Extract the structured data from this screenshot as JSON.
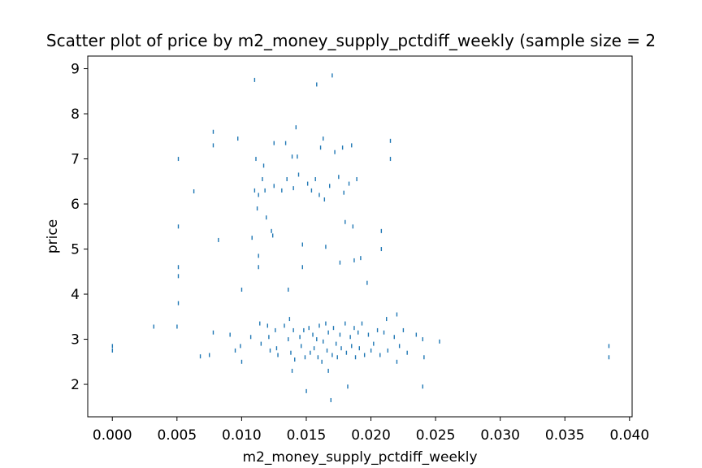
{
  "chart_data": {
    "type": "scatter",
    "title": "Scatter plot of price by m2_money_supply_pctdiff_weekly (sample size = 2",
    "xlabel": "m2_money_supply_pctdiff_weekly",
    "ylabel": "price",
    "xlim": [
      -0.0019,
      0.0402
    ],
    "ylim": [
      1.28,
      9.28
    ],
    "xticks": [
      0.0,
      0.005,
      0.01,
      0.015,
      0.02,
      0.025,
      0.03,
      0.035,
      0.04
    ],
    "xtick_labels": [
      "0.000",
      "0.005",
      "0.010",
      "0.015",
      "0.020",
      "0.025",
      "0.030",
      "0.035",
      "0.040"
    ],
    "yticks": [
      2,
      3,
      4,
      5,
      6,
      7,
      8,
      9
    ],
    "ytick_labels": [
      "2",
      "3",
      "4",
      "5",
      "6",
      "7",
      "8",
      "9"
    ],
    "marker_color": "#1f77b4",
    "points": [
      [
        0.0,
        2.75
      ],
      [
        0.0,
        2.85
      ],
      [
        0.0032,
        3.28
      ],
      [
        0.005,
        3.28
      ],
      [
        0.0051,
        7.0
      ],
      [
        0.0051,
        5.5
      ],
      [
        0.0051,
        4.6
      ],
      [
        0.0051,
        4.4
      ],
      [
        0.0051,
        3.8
      ],
      [
        0.0063,
        6.28
      ],
      [
        0.0068,
        2.62
      ],
      [
        0.0075,
        2.65
      ],
      [
        0.0078,
        3.15
      ],
      [
        0.0078,
        7.6
      ],
      [
        0.0078,
        7.3
      ],
      [
        0.0082,
        5.2
      ],
      [
        0.0091,
        3.1
      ],
      [
        0.0095,
        2.75
      ],
      [
        0.0097,
        7.45
      ],
      [
        0.0099,
        2.85
      ],
      [
        0.01,
        2.5
      ],
      [
        0.01,
        4.1
      ],
      [
        0.0107,
        3.05
      ],
      [
        0.0108,
        5.25
      ],
      [
        0.011,
        8.75
      ],
      [
        0.0111,
        7.0
      ],
      [
        0.011,
        6.3
      ],
      [
        0.0113,
        6.2
      ],
      [
        0.0112,
        5.9
      ],
      [
        0.0113,
        4.85
      ],
      [
        0.0113,
        4.6
      ],
      [
        0.0114,
        3.35
      ],
      [
        0.0115,
        2.9
      ],
      [
        0.0116,
        6.55
      ],
      [
        0.0117,
        6.85
      ],
      [
        0.0118,
        6.3
      ],
      [
        0.0119,
        5.7
      ],
      [
        0.012,
        3.3
      ],
      [
        0.0121,
        3.05
      ],
      [
        0.0122,
        2.75
      ],
      [
        0.0123,
        5.4
      ],
      [
        0.0124,
        5.3
      ],
      [
        0.0125,
        6.4
      ],
      [
        0.0125,
        7.35
      ],
      [
        0.0126,
        3.2
      ],
      [
        0.0127,
        2.8
      ],
      [
        0.0128,
        2.65
      ],
      [
        0.0131,
        6.3
      ],
      [
        0.0133,
        3.3
      ],
      [
        0.0134,
        7.35
      ],
      [
        0.0135,
        6.55
      ],
      [
        0.0136,
        3.0
      ],
      [
        0.0136,
        4.1
      ],
      [
        0.0137,
        3.45
      ],
      [
        0.0138,
        2.7
      ],
      [
        0.0139,
        7.05
      ],
      [
        0.014,
        6.35
      ],
      [
        0.0139,
        2.3
      ],
      [
        0.014,
        3.2
      ],
      [
        0.0141,
        2.55
      ],
      [
        0.0142,
        7.7
      ],
      [
        0.0143,
        7.05
      ],
      [
        0.0144,
        6.65
      ],
      [
        0.0145,
        3.05
      ],
      [
        0.0146,
        2.85
      ],
      [
        0.0147,
        5.1
      ],
      [
        0.0147,
        4.6
      ],
      [
        0.0148,
        3.2
      ],
      [
        0.0149,
        2.6
      ],
      [
        0.015,
        1.85
      ],
      [
        0.0151,
        6.45
      ],
      [
        0.0152,
        3.25
      ],
      [
        0.0153,
        2.7
      ],
      [
        0.0154,
        6.3
      ],
      [
        0.0155,
        3.1
      ],
      [
        0.0156,
        2.8
      ],
      [
        0.0157,
        6.55
      ],
      [
        0.0158,
        8.65
      ],
      [
        0.0158,
        3.0
      ],
      [
        0.0159,
        2.6
      ],
      [
        0.016,
        6.2
      ],
      [
        0.016,
        3.3
      ],
      [
        0.0161,
        7.25
      ],
      [
        0.0162,
        2.5
      ],
      [
        0.0163,
        2.95
      ],
      [
        0.0163,
        7.45
      ],
      [
        0.0164,
        6.1
      ],
      [
        0.0165,
        3.35
      ],
      [
        0.0165,
        5.05
      ],
      [
        0.0166,
        2.75
      ],
      [
        0.0167,
        3.15
      ],
      [
        0.0167,
        2.3
      ],
      [
        0.0168,
        6.4
      ],
      [
        0.0169,
        1.65
      ],
      [
        0.017,
        8.85
      ],
      [
        0.017,
        2.65
      ],
      [
        0.0171,
        3.25
      ],
      [
        0.0172,
        7.15
      ],
      [
        0.0173,
        2.9
      ],
      [
        0.0174,
        2.6
      ],
      [
        0.0175,
        6.6
      ],
      [
        0.0176,
        4.7
      ],
      [
        0.0176,
        3.1
      ],
      [
        0.0177,
        2.8
      ],
      [
        0.0178,
        7.25
      ],
      [
        0.0179,
        6.25
      ],
      [
        0.018,
        5.6
      ],
      [
        0.018,
        3.35
      ],
      [
        0.0181,
        2.7
      ],
      [
        0.0182,
        1.95
      ],
      [
        0.0183,
        6.45
      ],
      [
        0.0184,
        3.05
      ],
      [
        0.0185,
        7.3
      ],
      [
        0.0185,
        2.85
      ],
      [
        0.0186,
        5.5
      ],
      [
        0.0187,
        4.75
      ],
      [
        0.0187,
        3.25
      ],
      [
        0.0188,
        2.6
      ],
      [
        0.0189,
        6.55
      ],
      [
        0.019,
        3.15
      ],
      [
        0.0191,
        2.8
      ],
      [
        0.0192,
        4.8
      ],
      [
        0.0193,
        3.35
      ],
      [
        0.0195,
        2.65
      ],
      [
        0.0197,
        4.25
      ],
      [
        0.0198,
        3.1
      ],
      [
        0.02,
        2.75
      ],
      [
        0.0202,
        2.9
      ],
      [
        0.0205,
        3.2
      ],
      [
        0.0207,
        2.65
      ],
      [
        0.0208,
        5.4
      ],
      [
        0.0208,
        5.0
      ],
      [
        0.021,
        3.15
      ],
      [
        0.0212,
        3.45
      ],
      [
        0.0213,
        2.75
      ],
      [
        0.0215,
        7.4
      ],
      [
        0.0215,
        7.0
      ],
      [
        0.0218,
        3.05
      ],
      [
        0.022,
        2.5
      ],
      [
        0.022,
        3.55
      ],
      [
        0.0222,
        2.85
      ],
      [
        0.0225,
        3.2
      ],
      [
        0.0228,
        2.7
      ],
      [
        0.0235,
        3.1
      ],
      [
        0.024,
        1.95
      ],
      [
        0.024,
        3.0
      ],
      [
        0.0241,
        2.6
      ],
      [
        0.0253,
        2.95
      ],
      [
        0.0384,
        2.6
      ],
      [
        0.0384,
        2.85
      ]
    ]
  }
}
